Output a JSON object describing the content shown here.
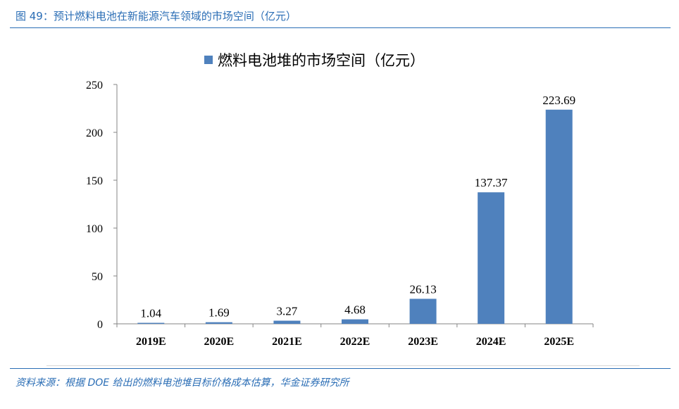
{
  "figure": {
    "title": "图 49：预计燃料电池在新能源汽车领域的市场空间（亿元）",
    "source": "资料来源：根据 DOE 给出的燃料电池堆目标价格成本估算，华金证券研究所"
  },
  "colors": {
    "bar": "#4f81bd",
    "accent": "#2a6db5",
    "axis": "#868686"
  },
  "chart_data": {
    "type": "bar",
    "categories": [
      "2019E",
      "2020E",
      "2021E",
      "2022E",
      "2023E",
      "2024E",
      "2025E"
    ],
    "series": [
      {
        "name": "燃料电池堆的市场空间（亿元）",
        "values": [
          1.04,
          1.69,
          3.27,
          4.68,
          26.13,
          137.37,
          223.69
        ]
      }
    ],
    "data_labels": [
      "1.04",
      "1.69",
      "3.27",
      "4.68",
      "26.13",
      "137.37",
      "223.69"
    ],
    "y_ticks": [
      "0",
      "50",
      "100",
      "150",
      "200",
      "250"
    ],
    "ylim": [
      0,
      250
    ],
    "grid": false,
    "legend_position": "top-center"
  }
}
